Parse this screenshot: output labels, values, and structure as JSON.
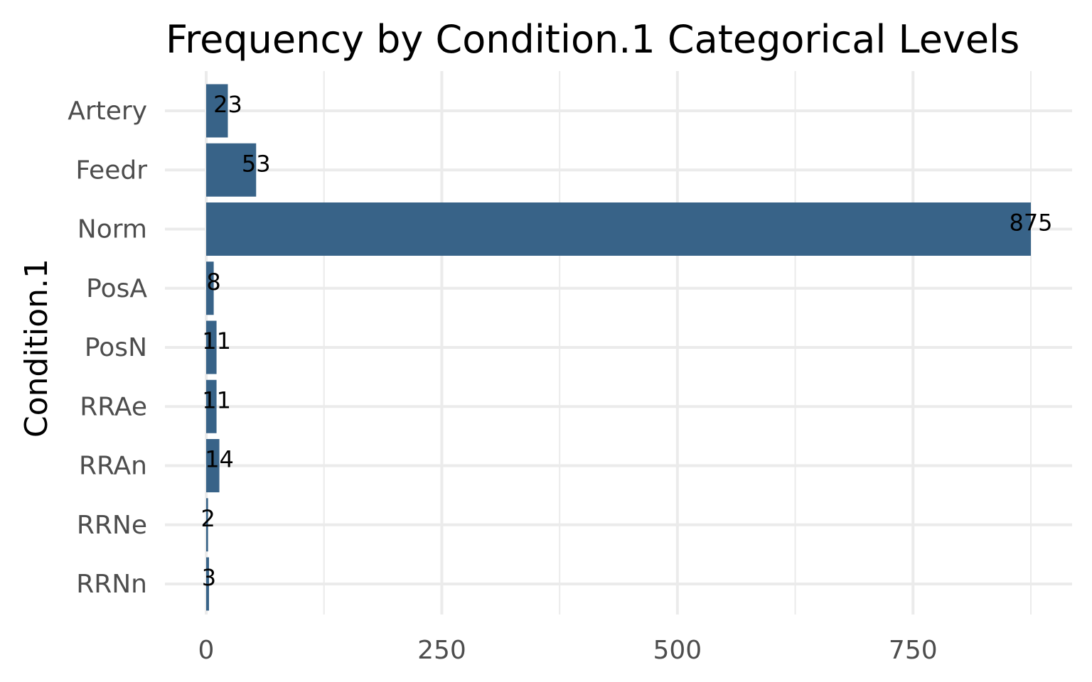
{
  "chart_data": {
    "type": "bar",
    "orientation": "horizontal",
    "title": "Frequency by Condition.1 Categorical Levels",
    "xlabel": "",
    "ylabel": "Condition.1",
    "categories": [
      "Artery",
      "Feedr",
      "Norm",
      "PosA",
      "PosN",
      "RRAe",
      "RRAn",
      "RRNe",
      "RRNn"
    ],
    "values": [
      23,
      53,
      875,
      8,
      11,
      11,
      14,
      2,
      3
    ],
    "data_labels": [
      "23",
      "53",
      "875",
      "8",
      "11",
      "11",
      "14",
      "2",
      "3"
    ],
    "xticks": [
      0,
      250,
      500,
      750
    ],
    "xtick_labels": [
      "0",
      "250",
      "500",
      "750"
    ],
    "xlim": [
      -43.75,
      918.75
    ],
    "grid": true,
    "legend": "none",
    "bar_color": "#386388"
  }
}
